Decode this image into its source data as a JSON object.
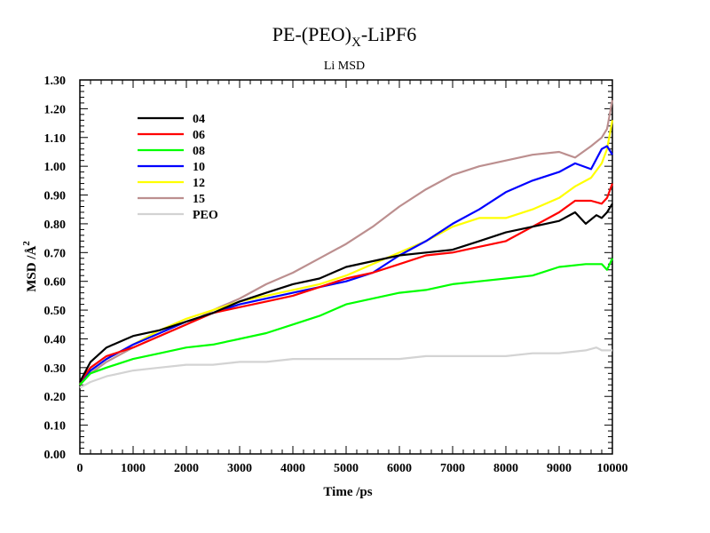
{
  "chart_data": {
    "type": "line",
    "title_main": "PE-(PEO)",
    "title_sub": "X",
    "title_tail": "-LiPF6",
    "subtitle": "Li MSD",
    "xlabel": "Time /ps",
    "ylabel_main": "MSD /Å",
    "ylabel_sup": "2",
    "xlim": [
      0,
      10000
    ],
    "ylim": [
      0,
      1.3
    ],
    "xticks": [
      "0",
      "1000",
      "2000",
      "3000",
      "4000",
      "5000",
      "6000",
      "7000",
      "8000",
      "9000",
      "10000"
    ],
    "yticks": [
      "0.00",
      "0.10",
      "0.20",
      "0.30",
      "0.40",
      "0.50",
      "0.60",
      "0.70",
      "0.80",
      "0.90",
      "1.00",
      "1.10",
      "1.20",
      "1.30"
    ],
    "grid": false,
    "legend_position": "top-left",
    "series": [
      {
        "name": "04",
        "color": "#000000",
        "x": [
          0,
          200,
          500,
          1000,
          1500,
          2000,
          2500,
          3000,
          3500,
          4000,
          4500,
          5000,
          5500,
          6000,
          6500,
          7000,
          7500,
          8000,
          8500,
          9000,
          9300,
          9500,
          9700,
          9800,
          9900,
          10000
        ],
        "y": [
          0.25,
          0.32,
          0.37,
          0.41,
          0.43,
          0.46,
          0.49,
          0.53,
          0.56,
          0.59,
          0.61,
          0.65,
          0.67,
          0.69,
          0.7,
          0.71,
          0.74,
          0.77,
          0.79,
          0.81,
          0.84,
          0.8,
          0.83,
          0.82,
          0.84,
          0.87
        ]
      },
      {
        "name": "06",
        "color": "#ff0000",
        "x": [
          0,
          200,
          500,
          1000,
          1500,
          2000,
          2500,
          3000,
          3500,
          4000,
          4500,
          5000,
          5500,
          6000,
          6500,
          7000,
          7500,
          8000,
          8500,
          9000,
          9300,
          9600,
          9800,
          9900,
          10000
        ],
        "y": [
          0.25,
          0.3,
          0.34,
          0.37,
          0.41,
          0.45,
          0.49,
          0.51,
          0.53,
          0.55,
          0.58,
          0.61,
          0.63,
          0.66,
          0.69,
          0.7,
          0.72,
          0.74,
          0.79,
          0.84,
          0.88,
          0.88,
          0.87,
          0.89,
          0.94
        ]
      },
      {
        "name": "08",
        "color": "#00ff00",
        "x": [
          0,
          200,
          500,
          1000,
          1500,
          2000,
          2500,
          3000,
          3500,
          4000,
          4500,
          5000,
          5500,
          6000,
          6500,
          7000,
          7500,
          8000,
          8500,
          9000,
          9500,
          9800,
          9900,
          10000
        ],
        "y": [
          0.24,
          0.28,
          0.3,
          0.33,
          0.35,
          0.37,
          0.38,
          0.4,
          0.42,
          0.45,
          0.48,
          0.52,
          0.54,
          0.56,
          0.57,
          0.59,
          0.6,
          0.61,
          0.62,
          0.65,
          0.66,
          0.66,
          0.64,
          0.68
        ]
      },
      {
        "name": "10",
        "color": "#0000ff",
        "x": [
          0,
          200,
          500,
          1000,
          1500,
          2000,
          2500,
          3000,
          3500,
          4000,
          4500,
          5000,
          5500,
          6000,
          6500,
          7000,
          7500,
          8000,
          8500,
          9000,
          9300,
          9600,
          9800,
          9900,
          10000
        ],
        "y": [
          0.25,
          0.29,
          0.33,
          0.38,
          0.42,
          0.46,
          0.49,
          0.52,
          0.54,
          0.56,
          0.58,
          0.6,
          0.63,
          0.69,
          0.74,
          0.8,
          0.85,
          0.91,
          0.95,
          0.98,
          1.01,
          0.99,
          1.06,
          1.07,
          1.04
        ]
      },
      {
        "name": "12",
        "color": "#ffff00",
        "x": [
          0,
          200,
          500,
          1000,
          1500,
          2000,
          2500,
          3000,
          3500,
          4000,
          4500,
          5000,
          5500,
          6000,
          6500,
          7000,
          7500,
          8000,
          8500,
          9000,
          9300,
          9600,
          9800,
          9900,
          10000
        ],
        "y": [
          0.24,
          0.29,
          0.33,
          0.38,
          0.43,
          0.47,
          0.5,
          0.53,
          0.55,
          0.57,
          0.59,
          0.62,
          0.66,
          0.7,
          0.74,
          0.79,
          0.82,
          0.82,
          0.85,
          0.89,
          0.93,
          0.96,
          1.01,
          1.06,
          1.16
        ]
      },
      {
        "name": "15",
        "color": "#bc8f8f",
        "x": [
          0,
          200,
          500,
          1000,
          1500,
          2000,
          2500,
          3000,
          3500,
          4000,
          4500,
          5000,
          5500,
          6000,
          6500,
          7000,
          7500,
          8000,
          8500,
          9000,
          9300,
          9600,
          9800,
          9900,
          10000
        ],
        "y": [
          0.25,
          0.28,
          0.32,
          0.37,
          0.41,
          0.45,
          0.5,
          0.54,
          0.59,
          0.63,
          0.68,
          0.73,
          0.79,
          0.86,
          0.92,
          0.97,
          1.0,
          1.02,
          1.04,
          1.05,
          1.03,
          1.07,
          1.1,
          1.13,
          1.23
        ]
      },
      {
        "name": "PEO",
        "color": "#d3d3d3",
        "x": [
          0,
          200,
          500,
          1000,
          1500,
          2000,
          2500,
          3000,
          3500,
          4000,
          4500,
          5000,
          5500,
          6000,
          6500,
          7000,
          7500,
          8000,
          8500,
          9000,
          9500,
          9700,
          9800,
          10000
        ],
        "y": [
          0.23,
          0.25,
          0.27,
          0.29,
          0.3,
          0.31,
          0.31,
          0.32,
          0.32,
          0.33,
          0.33,
          0.33,
          0.33,
          0.33,
          0.34,
          0.34,
          0.34,
          0.34,
          0.35,
          0.35,
          0.36,
          0.37,
          0.36,
          0.36
        ]
      }
    ]
  }
}
